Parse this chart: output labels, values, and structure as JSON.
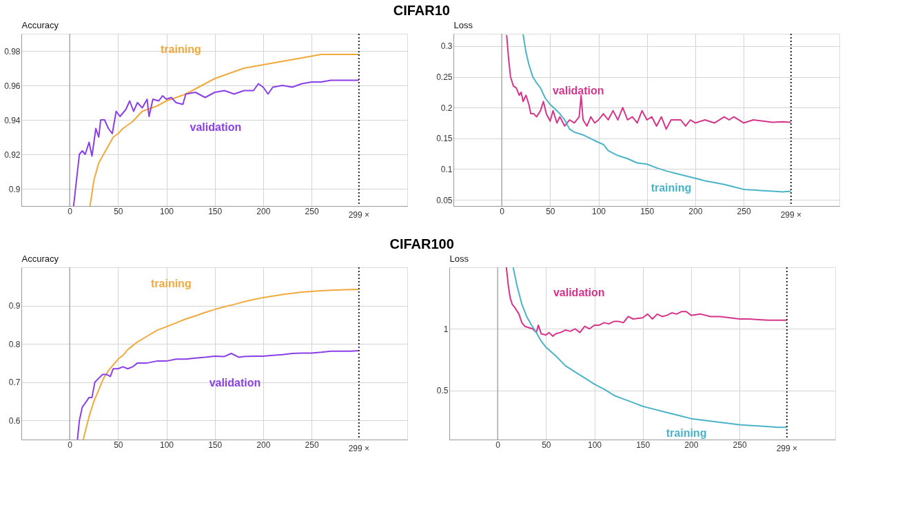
{
  "chart_data": [
    {
      "type": "line",
      "title": "CIFAR10",
      "ylabel": "Accuracy",
      "xlim": [
        -50,
        349
      ],
      "xticks": [
        0,
        50,
        100,
        150,
        200,
        250
      ],
      "ylim": [
        0.89,
        0.99
      ],
      "yticks": [
        0.9,
        0.92,
        0.94,
        0.96,
        0.98
      ],
      "grid": true,
      "legend": false,
      "line_style": "solid",
      "marker": "none",
      "ref_lines": [
        {
          "axis": "x",
          "value": 0,
          "label": null,
          "color": "#aaaaaa",
          "line_style": "solid"
        },
        {
          "axis": "x",
          "value": 299,
          "label": "299 ×",
          "color": "#222222",
          "line_style": "dotted"
        }
      ],
      "series": [
        {
          "name": "training",
          "color": "#f2a93b",
          "x": [
            21,
            25,
            30,
            35,
            40,
            45,
            50,
            55,
            60,
            65,
            70,
            75,
            80,
            90,
            100,
            110,
            120,
            130,
            140,
            150,
            160,
            170,
            180,
            190,
            200,
            210,
            220,
            230,
            240,
            250,
            260,
            270,
            280,
            290,
            299
          ],
          "values": [
            0.89,
            0.905,
            0.915,
            0.92,
            0.925,
            0.93,
            0.932,
            0.935,
            0.937,
            0.939,
            0.942,
            0.945,
            0.946,
            0.948,
            0.951,
            0.953,
            0.955,
            0.958,
            0.961,
            0.964,
            0.966,
            0.968,
            0.97,
            0.971,
            0.972,
            0.973,
            0.974,
            0.975,
            0.976,
            0.977,
            0.978,
            0.978,
            0.978,
            0.978,
            0.978
          ]
        },
        {
          "name": "validation",
          "color": "#8a3ee8",
          "x": [
            4,
            6,
            8,
            10,
            13,
            16,
            20,
            23,
            27,
            30,
            32,
            36,
            40,
            44,
            48,
            52,
            58,
            62,
            66,
            70,
            75,
            80,
            82,
            86,
            92,
            96,
            100,
            105,
            110,
            117,
            120,
            130,
            140,
            150,
            160,
            170,
            180,
            190,
            195,
            200,
            205,
            210,
            220,
            230,
            240,
            250,
            260,
            270,
            280,
            290,
            299
          ],
          "values": [
            0.89,
            0.9,
            0.91,
            0.92,
            0.922,
            0.92,
            0.927,
            0.919,
            0.935,
            0.93,
            0.94,
            0.94,
            0.935,
            0.932,
            0.945,
            0.942,
            0.946,
            0.951,
            0.945,
            0.95,
            0.947,
            0.952,
            0.942,
            0.952,
            0.951,
            0.954,
            0.952,
            0.953,
            0.95,
            0.949,
            0.955,
            0.956,
            0.953,
            0.956,
            0.957,
            0.955,
            0.957,
            0.957,
            0.961,
            0.959,
            0.955,
            0.959,
            0.96,
            0.959,
            0.961,
            0.962,
            0.962,
            0.963,
            0.963,
            0.963,
            0.963
          ]
        }
      ]
    },
    {
      "type": "line",
      "ylabel": "Loss",
      "xlim": [
        -50,
        349
      ],
      "xticks": [
        0,
        50,
        100,
        150,
        200,
        250
      ],
      "ylim": [
        0.04,
        0.32
      ],
      "yticks": [
        0.05,
        0.1,
        0.15,
        0.2,
        0.25,
        0.3
      ],
      "grid": true,
      "legend": false,
      "line_style": "solid",
      "marker": "none",
      "ref_lines": [
        {
          "axis": "x",
          "value": 0,
          "label": null,
          "color": "#aaaaaa",
          "line_style": "solid"
        },
        {
          "axis": "x",
          "value": 299,
          "label": "299 ×",
          "color": "#222222",
          "line_style": "dotted"
        }
      ],
      "series": [
        {
          "name": "validation",
          "color": "#d6338a",
          "x": [
            5,
            7,
            9,
            12,
            15,
            18,
            20,
            22,
            25,
            28,
            30,
            33,
            36,
            40,
            43,
            46,
            50,
            53,
            57,
            60,
            65,
            70,
            75,
            80,
            82,
            84,
            88,
            92,
            96,
            100,
            105,
            110,
            115,
            120,
            125,
            130,
            135,
            140,
            145,
            150,
            155,
            160,
            165,
            170,
            175,
            180,
            185,
            190,
            195,
            200,
            210,
            220,
            230,
            235,
            240,
            250,
            260,
            270,
            280,
            290,
            299
          ],
          "values": [
            0.318,
            0.28,
            0.25,
            0.235,
            0.232,
            0.22,
            0.225,
            0.21,
            0.22,
            0.205,
            0.19,
            0.19,
            0.185,
            0.195,
            0.21,
            0.19,
            0.178,
            0.195,
            0.175,
            0.185,
            0.17,
            0.18,
            0.175,
            0.185,
            0.22,
            0.18,
            0.17,
            0.185,
            0.175,
            0.18,
            0.19,
            0.18,
            0.195,
            0.18,
            0.2,
            0.18,
            0.185,
            0.175,
            0.195,
            0.18,
            0.185,
            0.17,
            0.185,
            0.165,
            0.18,
            0.18,
            0.18,
            0.17,
            0.18,
            0.175,
            0.18,
            0.175,
            0.185,
            0.18,
            0.185,
            0.175,
            0.18,
            0.178,
            0.176,
            0.177,
            0.176
          ]
        },
        {
          "name": "training",
          "color": "#4ab3c8",
          "x": [
            22,
            25,
            28,
            32,
            36,
            40,
            45,
            50,
            55,
            60,
            65,
            70,
            75,
            85,
            95,
            105,
            110,
            120,
            130,
            140,
            150,
            160,
            170,
            180,
            190,
            200,
            210,
            220,
            230,
            240,
            250,
            260,
            270,
            280,
            290,
            299
          ],
          "values": [
            0.319,
            0.29,
            0.27,
            0.25,
            0.24,
            0.232,
            0.215,
            0.205,
            0.198,
            0.19,
            0.18,
            0.165,
            0.16,
            0.155,
            0.147,
            0.14,
            0.13,
            0.122,
            0.117,
            0.11,
            0.108,
            0.102,
            0.097,
            0.093,
            0.089,
            0.085,
            0.081,
            0.078,
            0.075,
            0.071,
            0.067,
            0.066,
            0.065,
            0.064,
            0.063,
            0.064
          ]
        }
      ]
    },
    {
      "type": "line",
      "title": "CIFAR100",
      "ylabel": "Accuracy",
      "xlim": [
        -50,
        349
      ],
      "xticks": [
        0,
        50,
        100,
        150,
        200,
        250
      ],
      "ylim": [
        0.55,
        1.0
      ],
      "yticks": [
        0.6,
        0.7,
        0.8,
        0.9
      ],
      "grid": true,
      "legend": false,
      "line_style": "solid",
      "marker": "none",
      "ref_lines": [
        {
          "axis": "x",
          "value": 0,
          "label": null,
          "color": "#aaaaaa",
          "line_style": "solid"
        },
        {
          "axis": "x",
          "value": 299,
          "label": "299 ×",
          "color": "#222222",
          "line_style": "dotted"
        }
      ],
      "series": [
        {
          "name": "training",
          "color": "#f2a93b",
          "x": [
            14,
            17,
            20,
            25,
            30,
            35,
            40,
            45,
            50,
            55,
            60,
            65,
            70,
            80,
            90,
            100,
            110,
            120,
            130,
            140,
            150,
            160,
            170,
            180,
            190,
            200,
            210,
            220,
            230,
            240,
            250,
            260,
            270,
            280,
            290,
            299
          ],
          "values": [
            0.55,
            0.58,
            0.61,
            0.65,
            0.68,
            0.71,
            0.73,
            0.745,
            0.76,
            0.77,
            0.785,
            0.795,
            0.805,
            0.82,
            0.835,
            0.845,
            0.855,
            0.865,
            0.873,
            0.882,
            0.89,
            0.897,
            0.903,
            0.91,
            0.916,
            0.921,
            0.925,
            0.929,
            0.932,
            0.935,
            0.937,
            0.939,
            0.94,
            0.941,
            0.942,
            0.942
          ]
        },
        {
          "name": "validation",
          "color": "#8a3ee8",
          "x": [
            8,
            10,
            13,
            16,
            20,
            23,
            26,
            30,
            34,
            38,
            42,
            45,
            50,
            55,
            60,
            65,
            70,
            75,
            80,
            90,
            100,
            110,
            120,
            130,
            140,
            150,
            160,
            167,
            175,
            180,
            190,
            200,
            210,
            220,
            230,
            240,
            250,
            260,
            270,
            280,
            290,
            299
          ],
          "values": [
            0.55,
            0.6,
            0.635,
            0.645,
            0.66,
            0.66,
            0.7,
            0.71,
            0.72,
            0.72,
            0.715,
            0.735,
            0.735,
            0.74,
            0.735,
            0.74,
            0.75,
            0.75,
            0.75,
            0.755,
            0.755,
            0.76,
            0.76,
            0.763,
            0.765,
            0.768,
            0.767,
            0.775,
            0.765,
            0.767,
            0.768,
            0.768,
            0.77,
            0.772,
            0.775,
            0.776,
            0.776,
            0.778,
            0.781,
            0.781,
            0.781,
            0.782
          ]
        }
      ]
    },
    {
      "type": "line",
      "ylabel": "Loss",
      "xlim": [
        -50,
        349
      ],
      "xticks": [
        0,
        50,
        100,
        150,
        200,
        250
      ],
      "ylim": [
        0.1,
        1.5
      ],
      "yticks": [
        0.5,
        1
      ],
      "grid": true,
      "legend": false,
      "line_style": "solid",
      "marker": "none",
      "ref_lines": [
        {
          "axis": "x",
          "value": 0,
          "label": null,
          "color": "#aaaaaa",
          "line_style": "solid"
        },
        {
          "axis": "x",
          "value": 299,
          "label": "299 ×",
          "color": "#222222",
          "line_style": "dotted"
        }
      ],
      "series": [
        {
          "name": "validation",
          "color": "#d6338a",
          "x": [
            9,
            11,
            13,
            15,
            18,
            22,
            25,
            28,
            32,
            36,
            40,
            42,
            45,
            50,
            53,
            57,
            60,
            65,
            70,
            75,
            80,
            85,
            90,
            95,
            100,
            105,
            110,
            115,
            120,
            125,
            130,
            135,
            140,
            150,
            155,
            160,
            165,
            170,
            175,
            180,
            185,
            190,
            195,
            200,
            210,
            220,
            230,
            240,
            250,
            260,
            270,
            280,
            290,
            299
          ],
          "values": [
            1.5,
            1.35,
            1.25,
            1.2,
            1.17,
            1.12,
            1.05,
            1.02,
            1.01,
            1.0,
            0.97,
            1.03,
            0.96,
            0.95,
            0.97,
            0.94,
            0.96,
            0.97,
            0.99,
            0.98,
            1.0,
            0.97,
            1.02,
            1.0,
            1.03,
            1.03,
            1.05,
            1.04,
            1.06,
            1.06,
            1.05,
            1.1,
            1.08,
            1.09,
            1.12,
            1.08,
            1.12,
            1.1,
            1.11,
            1.13,
            1.12,
            1.14,
            1.14,
            1.11,
            1.12,
            1.1,
            1.1,
            1.09,
            1.08,
            1.08,
            1.075,
            1.07,
            1.07,
            1.07
          ]
        },
        {
          "name": "training",
          "color": "#4ab3c8",
          "x": [
            16,
            20,
            25,
            30,
            35,
            40,
            45,
            50,
            60,
            70,
            80,
            90,
            100,
            110,
            120,
            130,
            140,
            150,
            160,
            170,
            180,
            190,
            200,
            210,
            220,
            230,
            240,
            250,
            260,
            270,
            280,
            290,
            299
          ],
          "values": [
            1.5,
            1.35,
            1.2,
            1.1,
            1.03,
            0.97,
            0.9,
            0.85,
            0.78,
            0.7,
            0.65,
            0.6,
            0.55,
            0.51,
            0.46,
            0.43,
            0.4,
            0.37,
            0.35,
            0.33,
            0.31,
            0.29,
            0.27,
            0.26,
            0.25,
            0.24,
            0.23,
            0.22,
            0.215,
            0.21,
            0.205,
            0.2,
            0.2
          ]
        }
      ]
    }
  ]
}
